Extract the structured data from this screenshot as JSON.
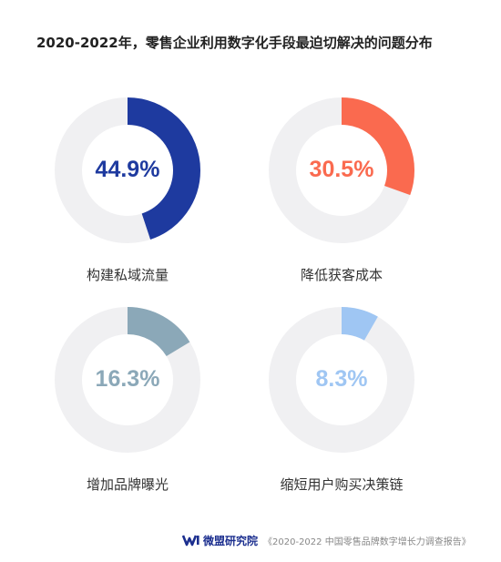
{
  "title": "2020-2022年，零售企业利用数字化手段最迫切解决的问题分布",
  "chart_data": {
    "type": "pie",
    "variant": "donut-small-multiples",
    "track_color": "#f0f0f2",
    "charts": [
      {
        "label": "构建私域流量",
        "value": 44.9,
        "value_label": "44.9%",
        "color": "#1e3a9f"
      },
      {
        "label": "降低获客成本",
        "value": 30.5,
        "value_label": "30.5%",
        "color": "#fa6a4f"
      },
      {
        "label": "增加品牌曝光",
        "value": 16.3,
        "value_label": "16.3%",
        "color": "#8ba8b8"
      },
      {
        "label": "缩短用户购买决策链",
        "value": 8.3,
        "value_label": "8.3%",
        "color": "#9fc6f3"
      }
    ]
  },
  "footer": {
    "logo_icon": "weimeng-logo-icon",
    "brand": "微盟研究院",
    "source": "《2020-2022 中国零售品牌数字增长力调查报告》"
  }
}
